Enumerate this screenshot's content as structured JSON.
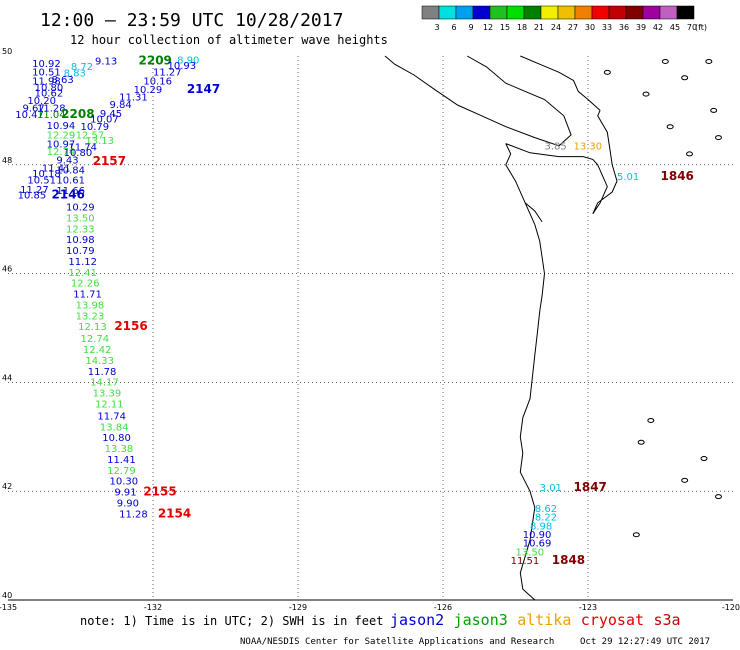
{
  "header": {
    "title": "12:00 – 23:59 UTC 10/28/2017",
    "subtitle": "12 hour collection of altimeter wave heights"
  },
  "color_scale": {
    "values": [
      "3",
      "6",
      "9",
      "12",
      "15",
      "18",
      "21",
      "24",
      "27",
      "30",
      "33",
      "36",
      "39",
      "42",
      "45",
      "70"
    ],
    "unit": "(ft)",
    "colors": [
      "#808080",
      "#00e0e0",
      "#00a0f0",
      "#0000d0",
      "#20c020",
      "#00e000",
      "#008000",
      "#f0f000",
      "#f0c000",
      "#f08000",
      "#f00000",
      "#c00000",
      "#800000",
      "#a000a0",
      "#c060c0",
      "#000000"
    ]
  },
  "map": {
    "lon_ticks": [
      "-135",
      "-132",
      "-129",
      "-126",
      "-123",
      "-120"
    ],
    "lat_ticks": [
      "50",
      "48",
      "46",
      "44",
      "42",
      "40"
    ],
    "lon_range": [
      -135,
      -120
    ],
    "lat_range": [
      40,
      50
    ],
    "grid": "dotted"
  },
  "observations": [
    {
      "text": "9.13",
      "lon": -133.2,
      "lat": 49.84,
      "color": "#0000d0"
    },
    {
      "text": "2209",
      "lon": -132.3,
      "lat": 49.84,
      "color": "#008000",
      "pass": true
    },
    {
      "text": "8.90",
      "lon": -131.5,
      "lat": 49.86,
      "color": "#00c0e0"
    },
    {
      "text": "10.92",
      "lon": -134.5,
      "lat": 49.8,
      "color": "#0000d0"
    },
    {
      "text": "10.93",
      "lon": -131.7,
      "lat": 49.76,
      "color": "#0000d0"
    },
    {
      "text": "8.72",
      "lon": -133.7,
      "lat": 49.74,
      "color": "#00c0e0"
    },
    {
      "text": "10.51",
      "lon": -134.5,
      "lat": 49.64,
      "color": "#0000d0"
    },
    {
      "text": "8.83",
      "lon": -133.85,
      "lat": 49.62,
      "color": "#00c0e0"
    },
    {
      "text": "11.27",
      "lon": -132.0,
      "lat": 49.64,
      "color": "#0000d0"
    },
    {
      "text": "11.98",
      "lon": -134.5,
      "lat": 49.48,
      "color": "#0000d0"
    },
    {
      "text": "8.63",
      "lon": -134.1,
      "lat": 49.5,
      "color": "#0000d0"
    },
    {
      "text": "10.16",
      "lon": -132.2,
      "lat": 49.48,
      "color": "#0000d0"
    },
    {
      "text": "10.29",
      "lon": -132.4,
      "lat": 49.32,
      "color": "#0000d0"
    },
    {
      "text": "2147",
      "lon": -131.3,
      "lat": 49.32,
      "color": "#0000d0",
      "pass": true
    },
    {
      "text": "10.80",
      "lon": -134.45,
      "lat": 49.36,
      "color": "#0000d0"
    },
    {
      "text": "10.62",
      "lon": -134.45,
      "lat": 49.26,
      "color": "#0000d0"
    },
    {
      "text": "11.31",
      "lon": -132.7,
      "lat": 49.18,
      "color": "#0000d0"
    },
    {
      "text": "10.20",
      "lon": -134.6,
      "lat": 49.12,
      "color": "#0000d0"
    },
    {
      "text": "9.84",
      "lon": -132.9,
      "lat": 49.04,
      "color": "#0000d0"
    },
    {
      "text": "9.67",
      "lon": -134.7,
      "lat": 48.98,
      "color": "#0000d0"
    },
    {
      "text": "11.28",
      "lon": -134.4,
      "lat": 48.98,
      "color": "#0000d0"
    },
    {
      "text": "9.45",
      "lon": -133.1,
      "lat": 48.88,
      "color": "#0000d0"
    },
    {
      "text": "10.47",
      "lon": -134.85,
      "lat": 48.86,
      "color": "#0000d0"
    },
    {
      "text": "11.04",
      "lon": -134.4,
      "lat": 48.86,
      "color": "#008000"
    },
    {
      "text": "2208",
      "lon": -133.9,
      "lat": 48.86,
      "color": "#008000",
      "pass": true
    },
    {
      "text": "10.07",
      "lon": -133.3,
      "lat": 48.78,
      "color": "#0000d0"
    },
    {
      "text": "10.94",
      "lon": -134.2,
      "lat": 48.66,
      "color": "#0000d0"
    },
    {
      "text": "10.79",
      "lon": -133.5,
      "lat": 48.64,
      "color": "#0000d0"
    },
    {
      "text": "12.29",
      "lon": -134.2,
      "lat": 48.48,
      "color": "#40e040"
    },
    {
      "text": "12.57",
      "lon": -133.6,
      "lat": 48.48,
      "color": "#40e040"
    },
    {
      "text": "13.13",
      "lon": -133.4,
      "lat": 48.38,
      "color": "#40e040"
    },
    {
      "text": "10.97",
      "lon": -134.2,
      "lat": 48.32,
      "color": "#0000d0"
    },
    {
      "text": "11.74",
      "lon": -133.75,
      "lat": 48.26,
      "color": "#0000d0"
    },
    {
      "text": "12.74",
      "lon": -134.2,
      "lat": 48.18,
      "color": "#40e040"
    },
    {
      "text": "10.80",
      "lon": -133.85,
      "lat": 48.16,
      "color": "#0000d0"
    },
    {
      "text": "9.43",
      "lon": -134.0,
      "lat": 48.02,
      "color": "#0000d0"
    },
    {
      "text": "2157",
      "lon": -133.25,
      "lat": 48.0,
      "color": "#e00000",
      "pass": true
    },
    {
      "text": "11.41",
      "lon": -134.3,
      "lat": 47.88,
      "color": "#0000d0"
    },
    {
      "text": "10.84",
      "lon": -134.0,
      "lat": 47.84,
      "color": "#0000d0"
    },
    {
      "text": "10.18",
      "lon": -134.5,
      "lat": 47.78,
      "color": "#0000d0"
    },
    {
      "text": "10.51",
      "lon": -134.6,
      "lat": 47.66,
      "color": "#0000d0"
    },
    {
      "text": "10.61",
      "lon": -134.0,
      "lat": 47.66,
      "color": "#0000d0"
    },
    {
      "text": "11.27",
      "lon": -134.75,
      "lat": 47.48,
      "color": "#0000d0"
    },
    {
      "text": "11.66",
      "lon": -134.0,
      "lat": 47.46,
      "color": "#0000d0"
    },
    {
      "text": "10.85",
      "lon": -134.8,
      "lat": 47.38,
      "color": "#0000d0"
    },
    {
      "text": "2146",
      "lon": -134.1,
      "lat": 47.38,
      "color": "#0000d0",
      "pass": true
    },
    {
      "text": "10.29",
      "lon": -133.8,
      "lat": 47.16,
      "color": "#0000d0"
    },
    {
      "text": "13.50",
      "lon": -133.8,
      "lat": 46.96,
      "color": "#40e040"
    },
    {
      "text": "12.33",
      "lon": -133.8,
      "lat": 46.76,
      "color": "#40e040"
    },
    {
      "text": "10.98",
      "lon": -133.8,
      "lat": 46.56,
      "color": "#0000d0"
    },
    {
      "text": "10.79",
      "lon": -133.8,
      "lat": 46.36,
      "color": "#0000d0"
    },
    {
      "text": "11.12",
      "lon": -133.75,
      "lat": 46.16,
      "color": "#0000d0"
    },
    {
      "text": "12.41",
      "lon": -133.75,
      "lat": 45.96,
      "color": "#40e040"
    },
    {
      "text": "12.26",
      "lon": -133.7,
      "lat": 45.76,
      "color": "#40e040"
    },
    {
      "text": "11.71",
      "lon": -133.65,
      "lat": 45.56,
      "color": "#0000d0"
    },
    {
      "text": "13.98",
      "lon": -133.6,
      "lat": 45.36,
      "color": "#40e040"
    },
    {
      "text": "13.23",
      "lon": -133.6,
      "lat": 45.16,
      "color": "#40e040"
    },
    {
      "text": "12.13",
      "lon": -133.55,
      "lat": 44.96,
      "color": "#40e040"
    },
    {
      "text": "2156",
      "lon": -132.8,
      "lat": 44.96,
      "color": "#e00000",
      "pass": true
    },
    {
      "text": "12.74",
      "lon": -133.5,
      "lat": 44.74,
      "color": "#40e040"
    },
    {
      "text": "12.42",
      "lon": -133.45,
      "lat": 44.54,
      "color": "#40e040"
    },
    {
      "text": "14.33",
      "lon": -133.4,
      "lat": 44.34,
      "color": "#40e040"
    },
    {
      "text": "11.78",
      "lon": -133.35,
      "lat": 44.14,
      "color": "#0000d0"
    },
    {
      "text": "14.17",
      "lon": -133.3,
      "lat": 43.94,
      "color": "#40e040"
    },
    {
      "text": "13.39",
      "lon": -133.25,
      "lat": 43.74,
      "color": "#40e040"
    },
    {
      "text": "12.11",
      "lon": -133.2,
      "lat": 43.54,
      "color": "#40e040"
    },
    {
      "text": "11.74",
      "lon": -133.15,
      "lat": 43.32,
      "color": "#0000d0"
    },
    {
      "text": "13.84",
      "lon": -133.1,
      "lat": 43.12,
      "color": "#40e040"
    },
    {
      "text": "10.80",
      "lon": -133.05,
      "lat": 42.92,
      "color": "#0000d0"
    },
    {
      "text": "13.38",
      "lon": -133.0,
      "lat": 42.72,
      "color": "#40e040"
    },
    {
      "text": "11.41",
      "lon": -132.95,
      "lat": 42.52,
      "color": "#0000d0"
    },
    {
      "text": "12.79",
      "lon": -132.95,
      "lat": 42.32,
      "color": "#40e040"
    },
    {
      "text": "10.30",
      "lon": -132.9,
      "lat": 42.12,
      "color": "#0000d0"
    },
    {
      "text": "9.91",
      "lon": -132.8,
      "lat": 41.92,
      "color": "#0000d0"
    },
    {
      "text": "2155",
      "lon": -132.2,
      "lat": 41.92,
      "color": "#e00000",
      "pass": true
    },
    {
      "text": "9.90",
      "lon": -132.75,
      "lat": 41.72,
      "color": "#0000d0"
    },
    {
      "text": "11.28",
      "lon": -132.7,
      "lat": 41.52,
      "color": "#0000d0"
    },
    {
      "text": "2154",
      "lon": -131.9,
      "lat": 41.52,
      "color": "#e00000",
      "pass": true
    },
    {
      "text": "3.85",
      "lon": -123.9,
      "lat": 48.28,
      "color": "#808080"
    },
    {
      "text": "13.30",
      "lon": -123.3,
      "lat": 48.28,
      "color": "#f0a000"
    },
    {
      "text": "5.01",
      "lon": -122.4,
      "lat": 47.72,
      "color": "#00c0e0"
    },
    {
      "text": "1846",
      "lon": -121.5,
      "lat": 47.72,
      "color": "#800000",
      "pass": true
    },
    {
      "text": "3.01",
      "lon": -124.0,
      "lat": 42.0,
      "color": "#00c0e0"
    },
    {
      "text": "1847",
      "lon": -123.3,
      "lat": 42.0,
      "color": "#800000",
      "pass": true
    },
    {
      "text": "8.62",
      "lon": -124.1,
      "lat": 41.62,
      "color": "#00c0e0"
    },
    {
      "text": "8.22",
      "lon": -124.1,
      "lat": 41.46,
      "color": "#00c0e0"
    },
    {
      "text": "8.98",
      "lon": -124.2,
      "lat": 41.3,
      "color": "#00c0e0"
    },
    {
      "text": "10.90",
      "lon": -124.35,
      "lat": 41.14,
      "color": "#0000d0"
    },
    {
      "text": "10.69",
      "lon": -124.35,
      "lat": 40.98,
      "color": "#0000d0"
    },
    {
      "text": "13.50",
      "lon": -124.5,
      "lat": 40.82,
      "color": "#40e040"
    },
    {
      "text": "11.51",
      "lon": -124.6,
      "lat": 40.66,
      "color": "#800000"
    },
    {
      "text": "1848",
      "lon": -123.75,
      "lat": 40.66,
      "color": "#800000",
      "pass": true
    }
  ],
  "footnote": "note: 1) Time is in UTC; 2) SWH is in feet",
  "satellites": [
    {
      "name": "jason2",
      "color": "#0000d0"
    },
    {
      "name": "jason3",
      "color": "#00a000"
    },
    {
      "name": "altika",
      "color": "#f0a000"
    },
    {
      "name": "cryosat",
      "color": "#e00000"
    },
    {
      "name": "s3a",
      "color": "#c00000"
    }
  ],
  "credit": "NOAA/NESDIS Center for Satellite Applications and Research",
  "timestamp": "Oct 29 12:27:49 UTC 2017"
}
